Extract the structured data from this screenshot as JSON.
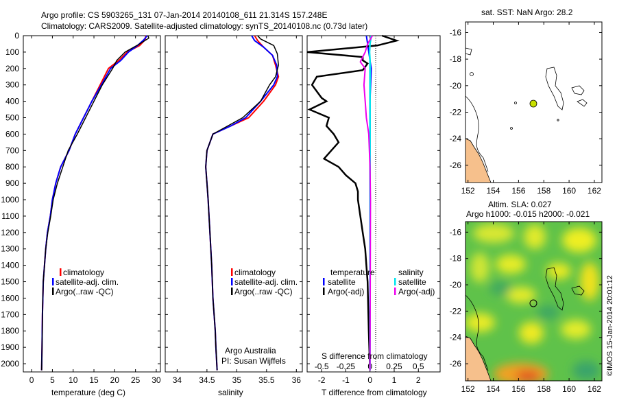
{
  "header": {
    "line1": "Argo profile: CS 5903265_131 07-Jan-2014 20140108_611 21.314S 157.248E",
    "line2": "Climatology: CARS2009. Satellite-adjusted climatology: synTS_20140108.nc (0.73d later)"
  },
  "colors": {
    "climatology": "#ff0000",
    "satellite": "#0000ff",
    "argo": "#000000",
    "sal_satellite": "#00e5ee",
    "sal_argo": "#ee00ee",
    "land": "#f6c08c",
    "argo_marker": "#c8e000"
  },
  "chart_data": [
    {
      "type": "line",
      "panel": "temperature",
      "xlabel": "temperature (deg C)",
      "xticks": [
        "0",
        "5",
        "10",
        "15",
        "20",
        "25",
        "30"
      ],
      "xlim": [
        -2,
        31
      ],
      "ylim": [
        0,
        2050
      ],
      "yticks": [
        "0",
        "100",
        "200",
        "300",
        "400",
        "500",
        "600",
        "700",
        "800",
        "900",
        "1000",
        "1100",
        "1200",
        "1300",
        "1400",
        "1500",
        "1600",
        "1700",
        "1800",
        "1900",
        "2000"
      ],
      "legend": [
        "climatology",
        "satellite-adj. clim.",
        "Argo(..raw -QC)"
      ],
      "series": [
        {
          "name": "climatology",
          "x": [
            27.5,
            27.3,
            26.0,
            23.0,
            21.0,
            18.5,
            16.5,
            14.5,
            12.5,
            10.5,
            9.0,
            7.0,
            5.8,
            5.0,
            4.5,
            3.8,
            3.4,
            3.1,
            2.8,
            2.6,
            2.5,
            2.4
          ],
          "y": [
            0,
            25,
            60,
            100,
            150,
            200,
            300,
            400,
            500,
            600,
            700,
            800,
            900,
            1000,
            1100,
            1200,
            1300,
            1400,
            1500,
            1700,
            1900,
            2040
          ]
        },
        {
          "name": "satellite-adj. clim.",
          "x": [
            27.8,
            27.0,
            25.5,
            23.3,
            21.5,
            19.0,
            16.8,
            14.5,
            12.5,
            10.5,
            9.0,
            7.0,
            5.8,
            5.0,
            4.5,
            3.8,
            3.4,
            3.1,
            2.8,
            2.6,
            2.5,
            2.4
          ],
          "y": [
            0,
            25,
            60,
            100,
            150,
            200,
            300,
            400,
            500,
            600,
            700,
            800,
            900,
            1000,
            1100,
            1200,
            1300,
            1400,
            1500,
            1700,
            1900,
            2040
          ]
        },
        {
          "name": "Argo(..raw -QC)",
          "x": [
            28.0,
            28.2,
            26.0,
            22.5,
            20.5,
            19.5,
            17.0,
            15.0,
            13.0,
            11.0,
            8.8,
            7.5,
            6.2,
            5.2,
            4.6,
            3.9,
            3.4,
            3.1,
            2.8,
            2.6,
            2.5,
            2.4
          ],
          "y": [
            0,
            15,
            50,
            100,
            150,
            200,
            300,
            400,
            500,
            600,
            700,
            800,
            900,
            1000,
            1100,
            1200,
            1300,
            1400,
            1500,
            1700,
            1900,
            2040
          ]
        }
      ]
    },
    {
      "type": "line",
      "panel": "salinity",
      "xlabel": "salinity",
      "xticks": [
        "34",
        "34.5",
        "35",
        "35.5",
        "36"
      ],
      "xlim": [
        33.8,
        36.1
      ],
      "ylim": [
        0,
        2050
      ],
      "legend": [
        "climatology",
        "satellite-adj. clim.",
        "Argo(..raw -QC)"
      ],
      "series": [
        {
          "name": "climatology",
          "x": [
            35.3,
            35.35,
            35.45,
            35.6,
            35.65,
            35.7,
            35.65,
            35.45,
            35.2,
            34.9,
            34.6,
            34.5,
            34.48,
            34.5,
            34.52,
            34.55,
            34.58,
            34.6,
            34.62,
            34.64,
            34.65,
            34.67
          ],
          "y": [
            0,
            30,
            70,
            120,
            180,
            250,
            300,
            400,
            500,
            550,
            600,
            700,
            800,
            900,
            1000,
            1200,
            1400,
            1600,
            1700,
            1800,
            1900,
            2040
          ]
        },
        {
          "name": "satellite-adj. clim.",
          "x": [
            35.25,
            35.3,
            35.45,
            35.6,
            35.67,
            35.68,
            35.62,
            35.4,
            35.15,
            34.9,
            34.6,
            34.5,
            34.48,
            34.5,
            34.52,
            34.55,
            34.58,
            34.6,
            34.62,
            34.64,
            34.65,
            34.67
          ],
          "y": [
            0,
            30,
            70,
            120,
            180,
            250,
            300,
            400,
            500,
            550,
            600,
            700,
            800,
            900,
            1000,
            1200,
            1400,
            1600,
            1700,
            1800,
            1900,
            2040
          ]
        },
        {
          "name": "Argo(..raw -QC)",
          "x": [
            35.35,
            35.4,
            35.62,
            35.68,
            35.7,
            35.65,
            35.55,
            35.4,
            35.1,
            34.85,
            34.6,
            34.5,
            34.48,
            34.5,
            34.52,
            34.55,
            34.58,
            34.6,
            34.62,
            34.64,
            34.65,
            34.67
          ],
          "y": [
            0,
            20,
            60,
            110,
            180,
            250,
            300,
            400,
            500,
            550,
            600,
            700,
            800,
            900,
            1000,
            1200,
            1400,
            1600,
            1700,
            1800,
            1900,
            2040
          ]
        }
      ],
      "annotation": [
        "Argo Australia",
        "PI: Susan Wijffels"
      ]
    },
    {
      "type": "line",
      "panel": "difference",
      "xlabel_top": "S difference from climatology",
      "xticks_top": [
        "-0.5",
        "-0.25",
        "0",
        "0.25",
        "0.5"
      ],
      "xlabel": "T difference from climatology",
      "xticks": [
        "-2",
        "-1",
        "0",
        "1",
        "2"
      ],
      "xlim": [
        -2.6,
        2.9
      ],
      "ylim": [
        0,
        2050
      ],
      "legend_headers": [
        "temperature",
        "salinity"
      ],
      "legend": [
        "satellite",
        "Argo(-adj)",
        "satellite",
        "Argo(-adj)"
      ],
      "series": [
        {
          "name": "satellite",
          "x": [
            -0.15,
            -0.1,
            -0.05,
            0.0,
            0.05,
            0.0,
            0.0,
            0.0,
            0.0,
            0.0,
            0.0,
            0.0
          ],
          "y": [
            0,
            50,
            100,
            150,
            200,
            400,
            600,
            800,
            1000,
            1500,
            1900,
            2040
          ]
        },
        {
          "name": "Argo(-adj)",
          "x": [
            0.5,
            1.1,
            0.3,
            -2.6,
            -0.3,
            -0.3,
            -0.1,
            -0.2,
            -0.3,
            -2.2,
            -2.4,
            -2.0,
            -1.8,
            -2.5,
            -1.7,
            -1.8,
            -1.5,
            -1.3,
            -1.6,
            -1.9,
            -1.3,
            -1.0,
            -0.6,
            -0.5,
            -0.5,
            -0.4,
            -0.3,
            -0.2,
            -0.15,
            -0.1,
            -0.05,
            0.0
          ],
          "y": [
            0,
            30,
            60,
            100,
            130,
            150,
            170,
            190,
            210,
            250,
            300,
            380,
            400,
            450,
            500,
            550,
            600,
            650,
            700,
            750,
            800,
            850,
            900,
            950,
            1000,
            1100,
            1200,
            1300,
            1400,
            1500,
            1800,
            2040
          ]
        },
        {
          "name": "satellite",
          "x": [
            0.05,
            0.0,
            -0.02,
            0.0,
            0.0,
            0.0,
            0.0,
            0.0,
            0.0,
            0.0
          ],
          "y": [
            0,
            50,
            100,
            150,
            200,
            300,
            500,
            800,
            1200,
            2040
          ]
        },
        {
          "name": "Argo(-adj)",
          "x": [
            0.1,
            -0.1,
            -0.2,
            -0.3,
            -0.4,
            -0.2,
            -0.25,
            -0.2,
            -0.15,
            -0.05,
            0.0,
            0.02,
            0.0
          ],
          "y": [
            0,
            50,
            100,
            130,
            160,
            200,
            300,
            400,
            500,
            600,
            800,
            1000,
            2040
          ]
        }
      ]
    }
  ],
  "sst_map": {
    "title": "sat. SST: NaN  Argo: 28.2",
    "yticks": [
      "-16",
      "-18",
      "-20",
      "-22",
      "-24",
      "-26"
    ],
    "xticks": [
      "152",
      "154",
      "156",
      "158",
      "160",
      "162"
    ]
  },
  "sla_map": {
    "title1": "Altim. SLA: 0.027",
    "title2": "Argo h1000: -0.015 h2000: -0.021",
    "yticks": [
      "-16",
      "-18",
      "-20",
      "-22",
      "-24",
      "-26"
    ],
    "xticks": [
      "152",
      "154",
      "156",
      "158",
      "160",
      "162"
    ],
    "side_label": "©IMOS 15-Jan-2014 20:01:12"
  }
}
